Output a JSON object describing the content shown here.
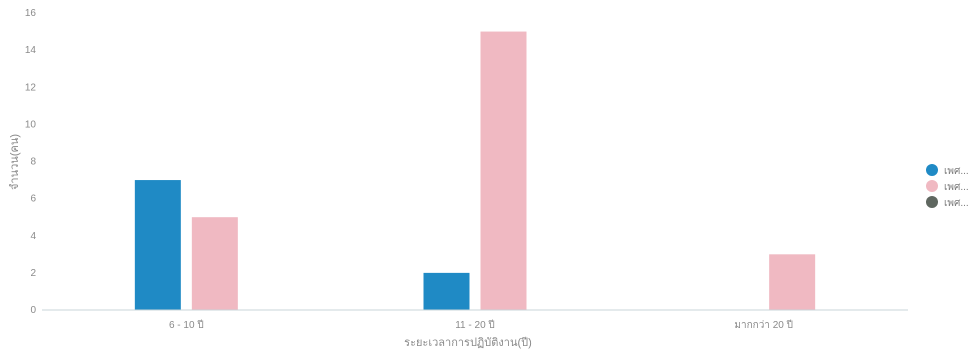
{
  "chart_data": {
    "type": "bar",
    "categories": [
      "6 - 10 ปี",
      "11 - 20 ปี",
      "มากกว่า 20 ปี"
    ],
    "series": [
      {
        "name": "เพศ...",
        "color": "#1f8ac5",
        "values": [
          7,
          2,
          0
        ]
      },
      {
        "name": "เพศ...",
        "color": "#f0b9c2",
        "values": [
          5,
          15,
          3
        ]
      },
      {
        "name": "เพศ...",
        "color": "#5f6760",
        "values": [
          0,
          0,
          0
        ]
      }
    ],
    "ylabel": "จำนวน(คน)",
    "xlabel": "ระยะเวลาการปฏิบัติงาน(ปี)",
    "ylim": [
      0,
      16
    ],
    "yticks": [
      0,
      2,
      4,
      6,
      8,
      10,
      12,
      14,
      16
    ],
    "legend_position": "right",
    "grid": false
  }
}
